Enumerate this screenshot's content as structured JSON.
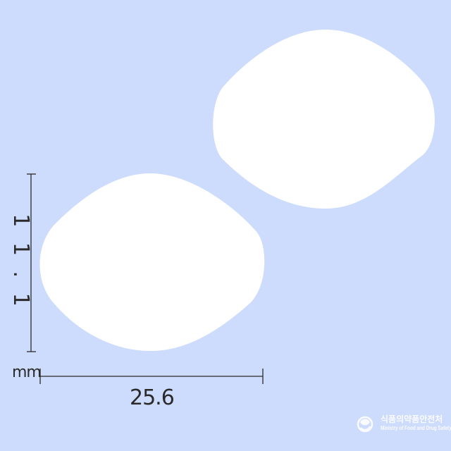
{
  "dimensions": {
    "height_label": "1 1 . 1",
    "width_label": "25.6",
    "unit_label": "mm"
  },
  "watermark": {
    "korean": "식품의약품안전처",
    "english": "Ministry of Food and Drug Safety"
  },
  "colors": {
    "background": "#cddcfc",
    "tablet": "#ffffff",
    "dimension_line": "#2a2a2a",
    "watermark": "#ffffff"
  }
}
